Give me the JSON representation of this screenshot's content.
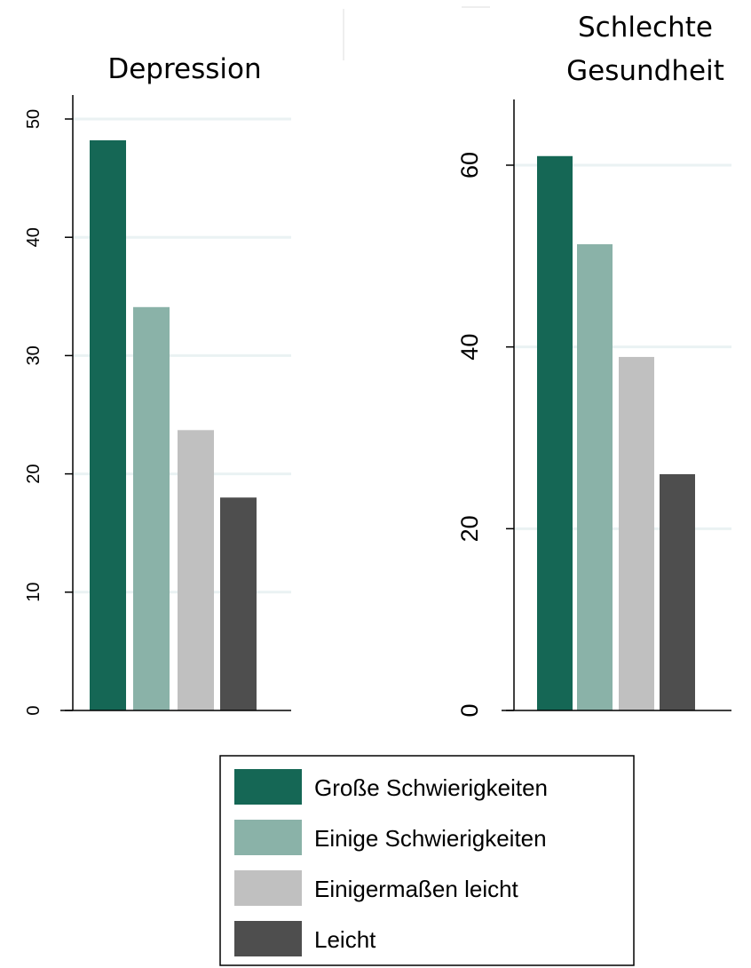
{
  "chart_data": [
    {
      "type": "bar",
      "title": "Depression",
      "xlabel": "",
      "ylabel": "",
      "ylim": [
        0,
        50
      ],
      "yticks": [
        "0",
        "10",
        "20",
        "30",
        "40",
        "50"
      ],
      "grid": true,
      "categories": [
        "Große Schwierigkeiten",
        "Einige Schwierigkeiten",
        "Einigermaßen leicht",
        "Leicht"
      ],
      "series": [
        {
          "values": [
            48.2,
            34.1,
            23.7,
            18.0
          ]
        }
      ]
    },
    {
      "type": "bar",
      "title": "Schlechte Gesundheit",
      "title_lines": [
        "Schlechte",
        "Gesundheit"
      ],
      "xlabel": "",
      "ylabel": "",
      "ylim": [
        0,
        60
      ],
      "yticks": [
        "0",
        "20",
        "40",
        "60"
      ],
      "grid": true,
      "categories": [
        "Große Schwierigkeiten",
        "Einige Schwierigkeiten",
        "Einigermaßen leicht",
        "Leicht"
      ],
      "series": [
        {
          "values": [
            61.0,
            51.3,
            38.9,
            26.0
          ]
        }
      ]
    }
  ],
  "legend": {
    "placement": "bottom-center",
    "items": [
      {
        "label": "Große Schwierigkeiten",
        "color": "#156755"
      },
      {
        "label": "Einige Schwierigkeiten",
        "color": "#8AB2A8"
      },
      {
        "label": "Einigermaßen leicht",
        "color": "#C0C0C0"
      },
      {
        "label": "Leicht",
        "color": "#4E4E4E"
      }
    ]
  },
  "colors": {
    "grid": "#EAF2F3",
    "axis": "#000000",
    "bars": [
      "#156755",
      "#8AB2A8",
      "#C0C0C0",
      "#4E4E4E"
    ]
  }
}
